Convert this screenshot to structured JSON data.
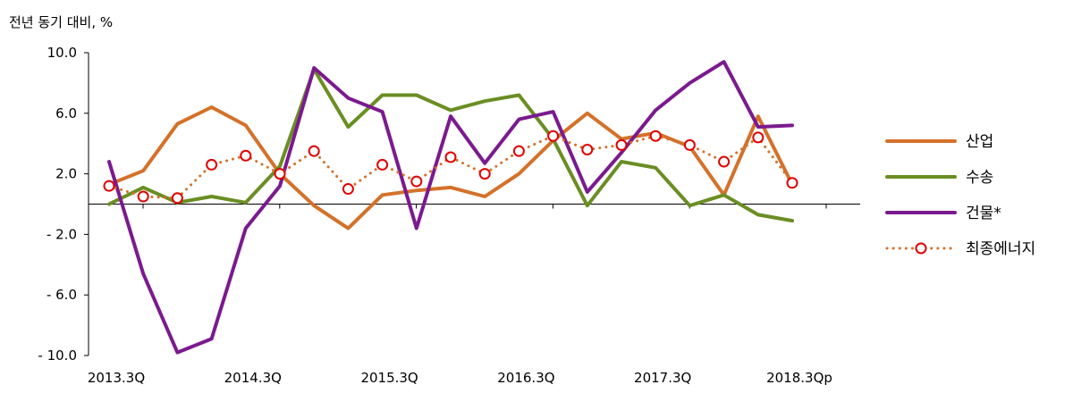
{
  "chart_data": {
    "type": "line",
    "unit_label": "전년 동기 대비, %",
    "ylim": [
      -10,
      10
    ],
    "yticks": [
      10,
      6,
      2,
      -2,
      -6,
      -10
    ],
    "ytick_labels": [
      "10.0",
      "6.0",
      "2.0",
      "- 2.0",
      "- 6.0",
      "- 10.0"
    ],
    "x": [
      "2013.3Q",
      "2013.4Q",
      "2014.1Q",
      "2014.2Q",
      "2014.3Q",
      "2014.4Q",
      "2015.1Q",
      "2015.2Q",
      "2015.3Q",
      "2015.4Q",
      "2016.1Q",
      "2016.2Q",
      "2016.3Q",
      "2016.4Q",
      "2017.1Q",
      "2017.2Q",
      "2017.3Q",
      "2017.4Q",
      "2018.1Q",
      "2018.2Q",
      "2018.3Qp"
    ],
    "xtick_labels": [
      {
        "index": 0,
        "label": "2013.3Q"
      },
      {
        "index": 4,
        "label": "2014.3Q"
      },
      {
        "index": 8,
        "label": "2015.3Q"
      },
      {
        "index": 12,
        "label": "2016.3Q"
      },
      {
        "index": 16,
        "label": "2017.3Q"
      },
      {
        "index": 20,
        "label": "2018.3Qp"
      }
    ],
    "grid": false,
    "legend_position": "right",
    "series": [
      {
        "name": "산업",
        "color": "#D4712A",
        "style": "solid",
        "values": [
          1.3,
          2.2,
          5.3,
          6.4,
          5.2,
          2.0,
          -0.1,
          -1.6,
          0.6,
          0.9,
          1.1,
          0.5,
          2.0,
          4.2,
          6.0,
          4.3,
          4.7,
          3.8,
          0.6,
          5.8,
          1.3
        ]
      },
      {
        "name": "수송",
        "color": "#6A8E23",
        "style": "solid",
        "values": [
          0.0,
          1.1,
          0.1,
          0.5,
          0.1,
          2.5,
          8.9,
          5.1,
          7.2,
          7.2,
          6.2,
          6.8,
          7.2,
          4.3,
          -0.1,
          2.8,
          2.4,
          -0.1,
          0.6,
          -0.7,
          -1.1
        ]
      },
      {
        "name": "건물*",
        "color": "#7B1A8E",
        "style": "solid",
        "values": [
          2.8,
          -4.6,
          -9.8,
          -8.9,
          -1.6,
          1.2,
          9.0,
          7.0,
          6.1,
          -1.6,
          5.8,
          2.7,
          5.6,
          6.1,
          0.8,
          3.4,
          6.2,
          8.0,
          9.4,
          5.1,
          5.2
        ]
      },
      {
        "name": "최종에너지",
        "color": "#D4712A",
        "style": "dotted",
        "marker": "circle",
        "marker_color": "#E00000",
        "values": [
          1.2,
          0.5,
          0.4,
          2.6,
          3.2,
          2.0,
          3.5,
          1.0,
          2.6,
          1.5,
          3.1,
          2.0,
          3.5,
          4.5,
          3.6,
          3.9,
          4.5,
          3.9,
          2.8,
          4.4,
          1.4
        ]
      }
    ]
  }
}
